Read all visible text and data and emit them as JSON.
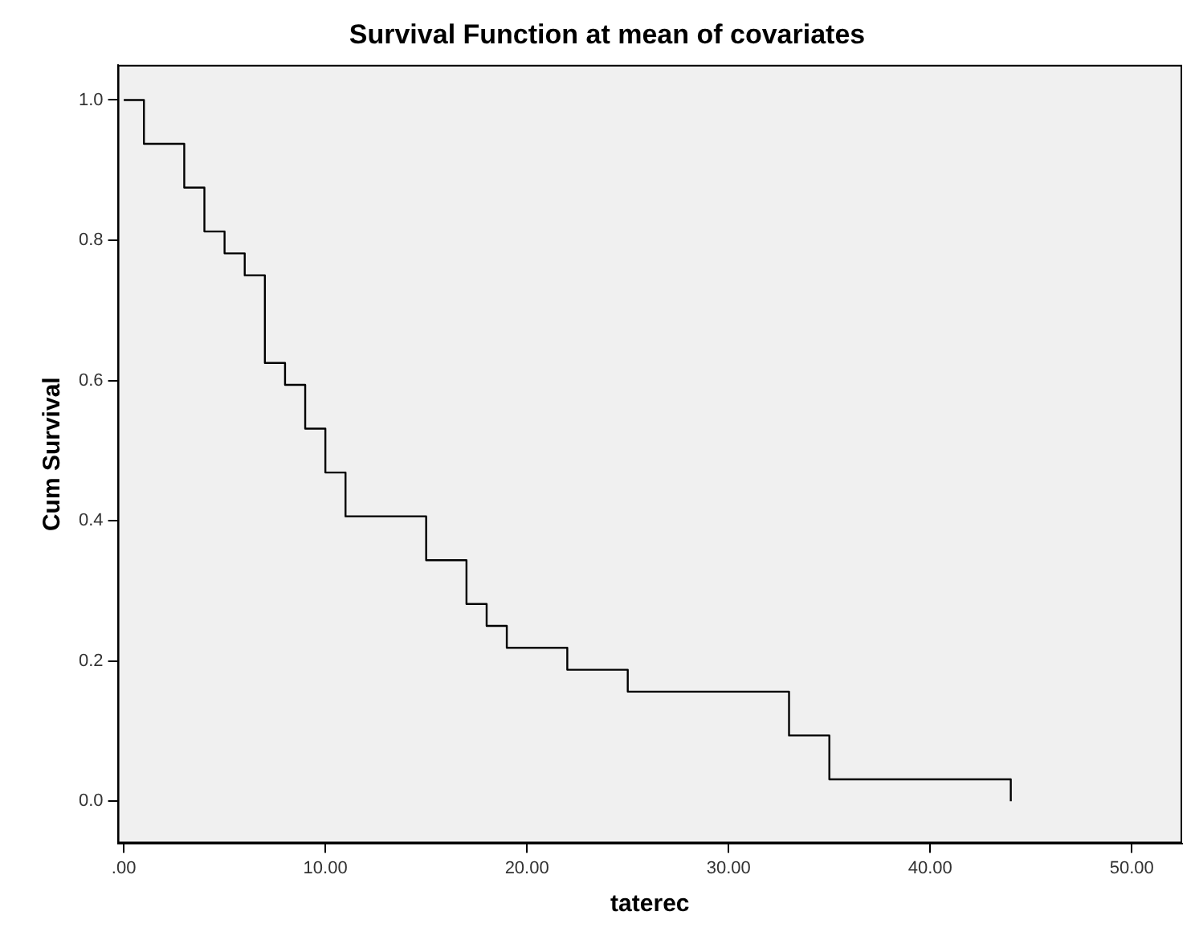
{
  "chart_data": {
    "type": "step",
    "title": "Survival Function at mean of covariates",
    "xlabel": "taterec",
    "ylabel": "Cum Survival",
    "x": [
      0,
      1,
      3,
      4,
      5,
      6,
      7,
      8,
      9,
      10,
      11,
      15,
      17,
      18,
      19,
      22,
      25,
      33,
      35,
      44,
      44
    ],
    "series": [
      {
        "color": "#000000",
        "values": [
          1,
          0.9375,
          0.875,
          0.8125,
          0.78125,
          0.75,
          0.625,
          0.59375,
          0.53125,
          0.46875,
          0.40625,
          0.34375,
          0.28125,
          0.25,
          0.21875,
          0.1875,
          0.15625,
          0.09375,
          0.03125,
          0.03125,
          0
        ]
      }
    ],
    "xlim": [
      -0.3,
      52.5
    ],
    "ylim": [
      -0.06,
      1.05
    ],
    "xticks": [
      {
        "value": 0,
        "label": ".00"
      },
      {
        "value": 10,
        "label": "10.00"
      },
      {
        "value": 20,
        "label": "20.00"
      },
      {
        "value": 30,
        "label": "30.00"
      },
      {
        "value": 40,
        "label": "40.00"
      },
      {
        "value": 50,
        "label": "50.00"
      }
    ],
    "yticks": [
      {
        "value": 0,
        "label": "0.0"
      },
      {
        "value": 0.2,
        "label": "0.2"
      },
      {
        "value": 0.4,
        "label": "0.4"
      },
      {
        "value": 0.6,
        "label": "0.6"
      },
      {
        "value": 0.8,
        "label": "0.8"
      },
      {
        "value": 1,
        "label": "1.0"
      }
    ],
    "grid": false,
    "legend": false,
    "marker": "none",
    "line_style": "solid"
  }
}
